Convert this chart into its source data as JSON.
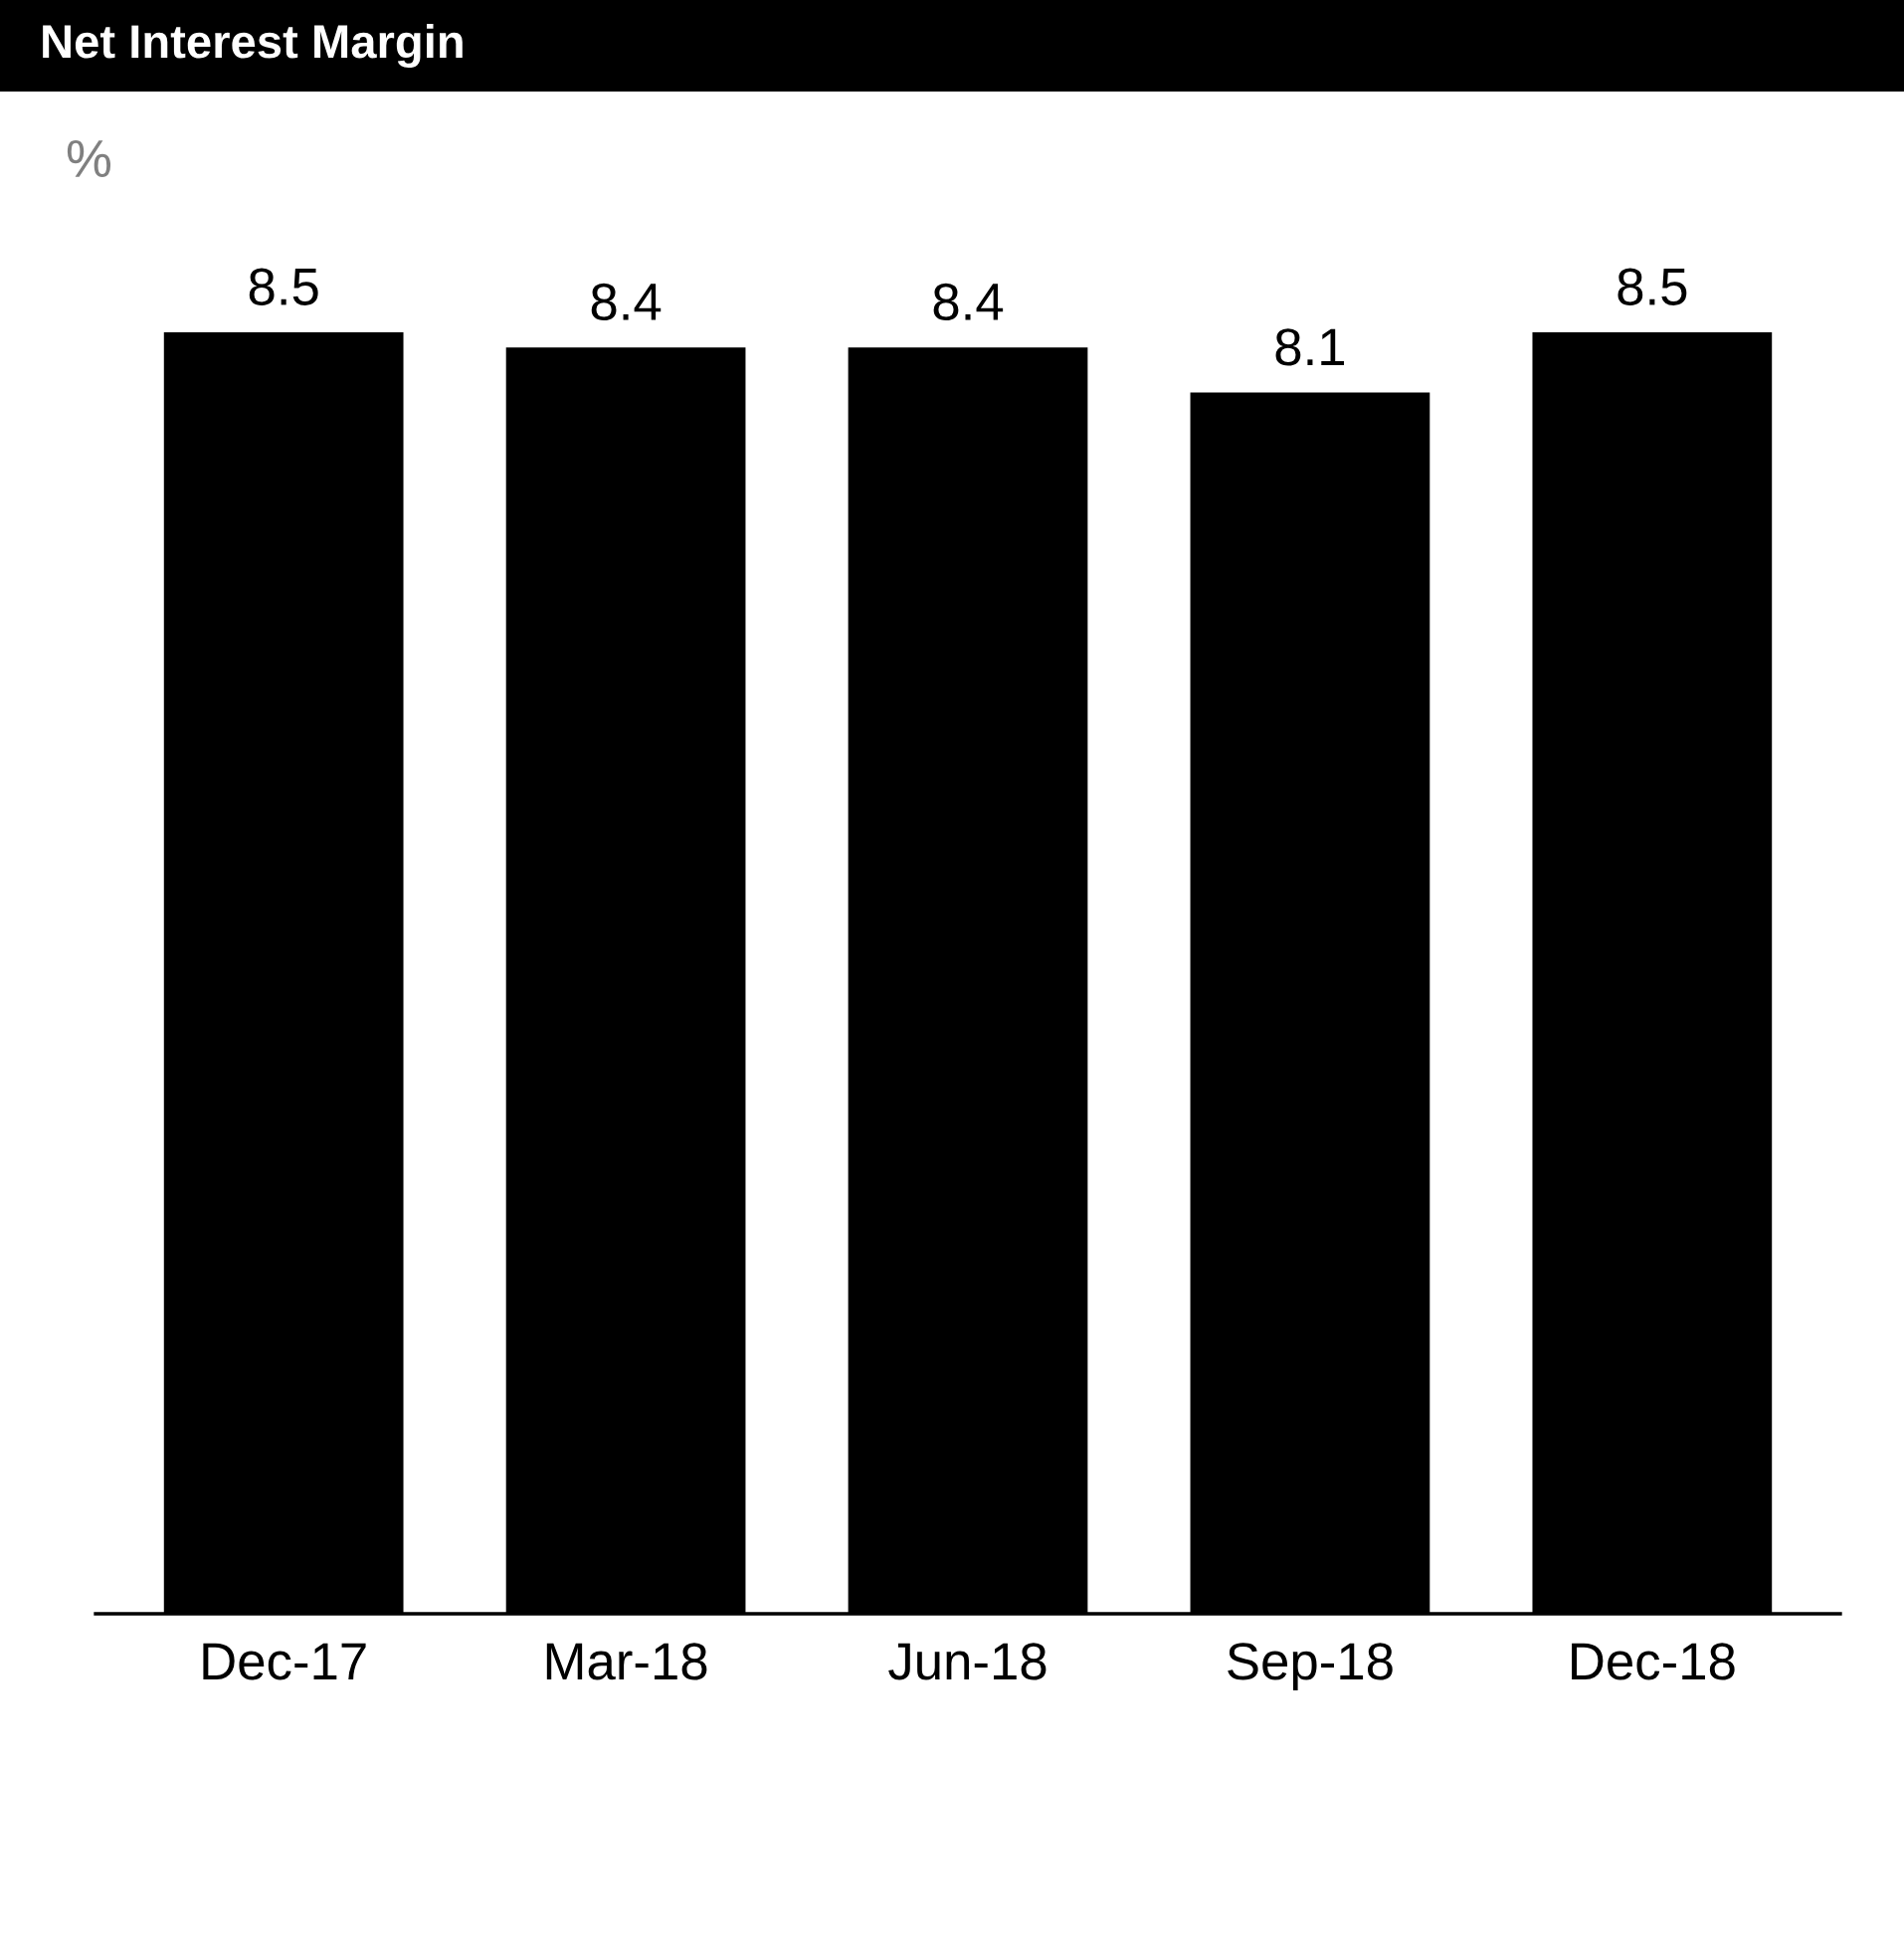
{
  "chart_data": {
    "type": "bar",
    "title": "Net Interest Margin",
    "ylabel": "%",
    "categories": [
      "Dec-17",
      "Mar-18",
      "Jun-18",
      "Sep-18",
      "Dec-18"
    ],
    "values": [
      8.5,
      8.4,
      8.4,
      8.1,
      8.5
    ],
    "color": "#000000",
    "data_labels": true,
    "grid": false,
    "legend": false,
    "tick_labels": "x"
  }
}
